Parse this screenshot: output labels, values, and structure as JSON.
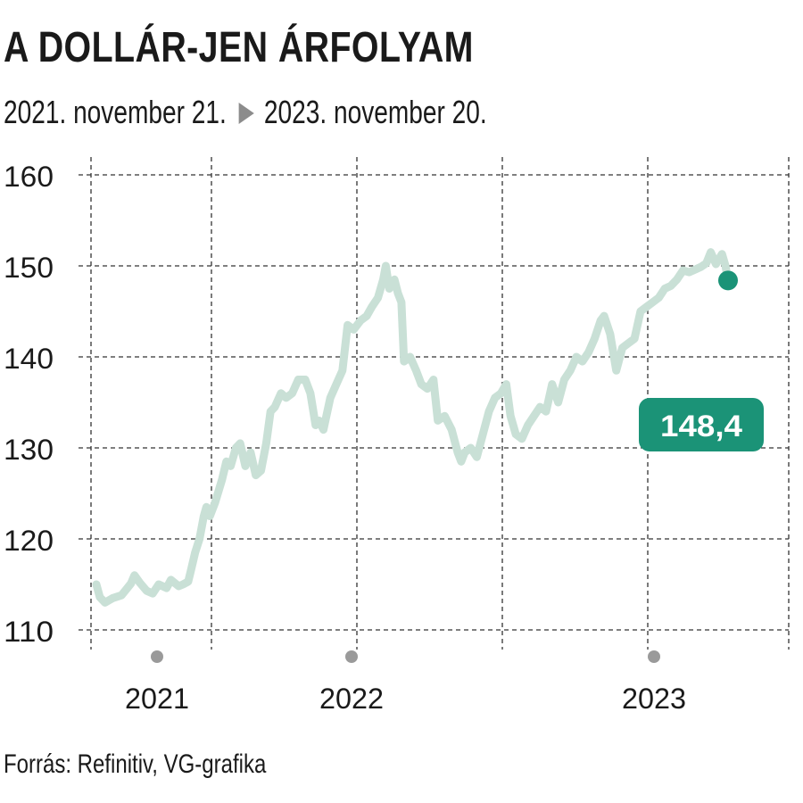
{
  "header": {
    "title": "A DOLLÁR-JEN ÁRFOLYAM",
    "date_from": "2021. november 21.",
    "date_to": "2023. november 20."
  },
  "footer": {
    "source": "Forrás: Refinitiv, VG-grafika"
  },
  "colors": {
    "line": "#c9e0d6",
    "accent": "#1b9377",
    "grid": "#333333",
    "year_marker": "#9a9a9a"
  },
  "chart_data": {
    "type": "line",
    "title": "A DOLLÁR-JEN ÁRFOLYAM",
    "subtitle": "2021. november 21. ▶ 2023. november 20.",
    "ylim": [
      110,
      160
    ],
    "yticks": [
      110,
      120,
      130,
      140,
      150,
      160
    ],
    "xlim": [
      "2021-11-21",
      "2023-11-20"
    ],
    "xticks": [
      {
        "label": "2021"
      },
      {
        "label": "2022"
      },
      {
        "label": "2023"
      }
    ],
    "grid": true,
    "last_value_label": "148,4",
    "series": [
      {
        "values": [
          [
            "2021-11-21",
            115.0
          ],
          [
            "2021-11-25",
            113.6
          ],
          [
            "2021-12-01",
            113.0
          ],
          [
            "2021-12-10",
            113.5
          ],
          [
            "2021-12-20",
            113.8
          ],
          [
            "2021-12-31",
            115.1
          ],
          [
            "2022-01-04",
            116.0
          ],
          [
            "2022-01-10",
            115.2
          ],
          [
            "2022-01-18",
            114.3
          ],
          [
            "2022-01-25",
            114.0
          ],
          [
            "2022-02-01",
            115.0
          ],
          [
            "2022-02-10",
            114.6
          ],
          [
            "2022-02-15",
            115.5
          ],
          [
            "2022-02-24",
            114.8
          ],
          [
            "2022-03-01",
            115.0
          ],
          [
            "2022-03-07",
            115.3
          ],
          [
            "2022-03-10",
            116.5
          ],
          [
            "2022-03-15",
            118.5
          ],
          [
            "2022-03-20",
            120.0
          ],
          [
            "2022-03-25",
            122.5
          ],
          [
            "2022-03-28",
            123.5
          ],
          [
            "2022-04-01",
            122.5
          ],
          [
            "2022-04-07",
            124.0
          ],
          [
            "2022-04-15",
            126.5
          ],
          [
            "2022-04-20",
            128.5
          ],
          [
            "2022-04-25",
            128.0
          ],
          [
            "2022-05-01",
            130.0
          ],
          [
            "2022-05-06",
            130.5
          ],
          [
            "2022-05-12",
            128.0
          ],
          [
            "2022-05-18",
            129.5
          ],
          [
            "2022-05-24",
            127.0
          ],
          [
            "2022-05-30",
            127.5
          ],
          [
            "2022-06-05",
            130.5
          ],
          [
            "2022-06-10",
            134.0
          ],
          [
            "2022-06-15",
            134.5
          ],
          [
            "2022-06-22",
            136.0
          ],
          [
            "2022-06-28",
            135.5
          ],
          [
            "2022-07-05",
            136.0
          ],
          [
            "2022-07-12",
            137.5
          ],
          [
            "2022-07-20",
            137.5
          ],
          [
            "2022-07-26",
            136.0
          ],
          [
            "2022-08-01",
            132.5
          ],
          [
            "2022-08-05",
            133.0
          ],
          [
            "2022-08-10",
            132.0
          ],
          [
            "2022-08-18",
            135.5
          ],
          [
            "2022-08-25",
            137.0
          ],
          [
            "2022-09-01",
            138.5
          ],
          [
            "2022-09-07",
            143.5
          ],
          [
            "2022-09-14",
            143.0
          ],
          [
            "2022-09-22",
            144.0
          ],
          [
            "2022-09-29",
            144.5
          ],
          [
            "2022-10-05",
            145.5
          ],
          [
            "2022-10-12",
            146.5
          ],
          [
            "2022-10-18",
            148.5
          ],
          [
            "2022-10-21",
            150.0
          ],
          [
            "2022-10-25",
            147.5
          ],
          [
            "2022-10-31",
            148.5
          ],
          [
            "2022-11-04",
            147.0
          ],
          [
            "2022-11-08",
            146.0
          ],
          [
            "2022-11-11",
            139.5
          ],
          [
            "2022-11-18",
            140.0
          ],
          [
            "2022-11-25",
            138.5
          ],
          [
            "2022-12-01",
            137.0
          ],
          [
            "2022-12-08",
            136.5
          ],
          [
            "2022-12-15",
            137.5
          ],
          [
            "2022-12-20",
            133.0
          ],
          [
            "2022-12-28",
            133.5
          ],
          [
            "2023-01-05",
            132.0
          ],
          [
            "2023-01-12",
            129.5
          ],
          [
            "2023-01-16",
            128.5
          ],
          [
            "2023-01-20",
            129.5
          ],
          [
            "2023-01-27",
            130.0
          ],
          [
            "2023-02-03",
            129.0
          ],
          [
            "2023-02-10",
            131.5
          ],
          [
            "2023-02-17",
            134.0
          ],
          [
            "2023-02-24",
            135.5
          ],
          [
            "2023-03-03",
            136.0
          ],
          [
            "2023-03-09",
            137.0
          ],
          [
            "2023-03-14",
            133.5
          ],
          [
            "2023-03-20",
            131.5
          ],
          [
            "2023-03-27",
            131.0
          ],
          [
            "2023-04-03",
            132.5
          ],
          [
            "2023-04-10",
            133.5
          ],
          [
            "2023-04-17",
            134.5
          ],
          [
            "2023-04-24",
            134.0
          ],
          [
            "2023-05-01",
            137.0
          ],
          [
            "2023-05-08",
            135.0
          ],
          [
            "2023-05-15",
            137.5
          ],
          [
            "2023-05-22",
            138.5
          ],
          [
            "2023-05-29",
            140.0
          ],
          [
            "2023-06-05",
            139.5
          ],
          [
            "2023-06-12",
            140.5
          ],
          [
            "2023-06-19",
            142.0
          ],
          [
            "2023-06-26",
            144.0
          ],
          [
            "2023-06-30",
            144.5
          ],
          [
            "2023-07-07",
            142.5
          ],
          [
            "2023-07-14",
            138.5
          ],
          [
            "2023-07-21",
            141.0
          ],
          [
            "2023-07-28",
            141.5
          ],
          [
            "2023-08-04",
            142.0
          ],
          [
            "2023-08-11",
            145.0
          ],
          [
            "2023-08-18",
            145.5
          ],
          [
            "2023-08-25",
            146.0
          ],
          [
            "2023-09-01",
            146.5
          ],
          [
            "2023-09-08",
            147.5
          ],
          [
            "2023-09-15",
            147.8
          ],
          [
            "2023-09-22",
            148.5
          ],
          [
            "2023-09-29",
            149.5
          ],
          [
            "2023-10-06",
            149.3
          ],
          [
            "2023-10-13",
            149.6
          ],
          [
            "2023-10-20",
            149.9
          ],
          [
            "2023-10-26",
            150.3
          ],
          [
            "2023-10-31",
            151.5
          ],
          [
            "2023-11-06",
            150.2
          ],
          [
            "2023-11-13",
            151.3
          ],
          [
            "2023-11-17",
            150.0
          ],
          [
            "2023-11-20",
            148.4
          ]
        ]
      }
    ]
  }
}
